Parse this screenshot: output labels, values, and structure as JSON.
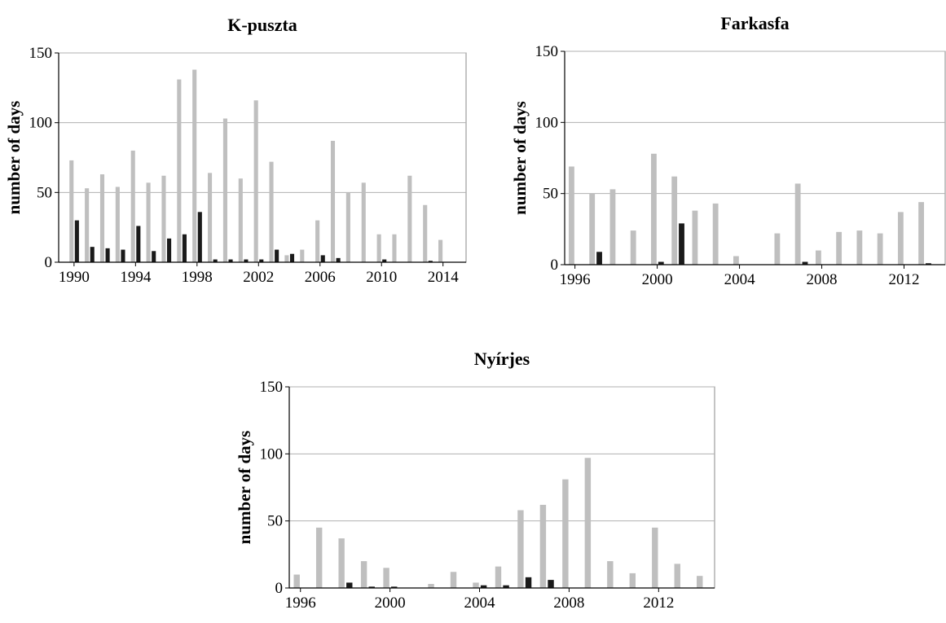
{
  "chart_data": [
    {
      "type": "bar",
      "title": "K-puszta",
      "ylabel": "number of days",
      "x": [
        1990,
        1991,
        1992,
        1993,
        1994,
        1995,
        1996,
        1997,
        1998,
        1999,
        2000,
        2001,
        2002,
        2003,
        2004,
        2005,
        2006,
        2007,
        2008,
        2009,
        2010,
        2011,
        2012,
        2013,
        2014
      ],
      "series": [
        {
          "color": "#bfbfbf",
          "values": [
            73,
            53,
            63,
            54,
            80,
            57,
            62,
            131,
            138,
            64,
            103,
            60,
            116,
            72,
            5,
            9,
            30,
            87,
            50,
            57,
            20,
            20,
            62,
            41,
            16
          ]
        },
        {
          "color": "#1a1a1a",
          "values": [
            30,
            11,
            10,
            9,
            26,
            8,
            17,
            20,
            36,
            2,
            2,
            2,
            2,
            9,
            6,
            0,
            5,
            3,
            0,
            0,
            2,
            0,
            0,
            1,
            0
          ]
        }
      ],
      "xlim": [
        1989,
        2015.5
      ],
      "xticks": [
        1990,
        1994,
        1998,
        2002,
        2006,
        2010,
        2014
      ],
      "ylim": [
        0,
        150
      ],
      "yticks": [
        0,
        50,
        100,
        150
      ],
      "grid": true
    },
    {
      "type": "bar",
      "title": "Farkasfa",
      "ylabel": "number of days",
      "x": [
        1996,
        1997,
        1998,
        1999,
        2000,
        2001,
        2002,
        2003,
        2004,
        2005,
        2006,
        2007,
        2008,
        2009,
        2010,
        2011,
        2012,
        2013
      ],
      "series": [
        {
          "color": "#bfbfbf",
          "values": [
            69,
            50,
            53,
            24,
            78,
            62,
            38,
            43,
            6,
            0,
            22,
            57,
            10,
            23,
            24,
            22,
            37,
            44
          ]
        },
        {
          "color": "#1a1a1a",
          "values": [
            0,
            9,
            0,
            0,
            2,
            29,
            0,
            0,
            0,
            0,
            0,
            2,
            0,
            0,
            0,
            0,
            0,
            1
          ]
        }
      ],
      "xlim": [
        1995.5,
        2014
      ],
      "xticks": [
        1996,
        2000,
        2004,
        2008,
        2012
      ],
      "ylim": [
        0,
        150
      ],
      "yticks": [
        0,
        50,
        100,
        150
      ],
      "grid": true
    },
    {
      "type": "bar",
      "title": "Nyírjes",
      "ylabel": "number of days",
      "x": [
        1996,
        1997,
        1998,
        1999,
        2000,
        2001,
        2002,
        2003,
        2004,
        2005,
        2006,
        2007,
        2008,
        2009,
        2010,
        2011,
        2012,
        2013,
        2014
      ],
      "series": [
        {
          "color": "#bfbfbf",
          "values": [
            10,
            45,
            37,
            20,
            15,
            0,
            3,
            12,
            4,
            16,
            58,
            62,
            81,
            97,
            20,
            11,
            45,
            18,
            9
          ]
        },
        {
          "color": "#1a1a1a",
          "values": [
            0,
            0,
            4,
            1,
            1,
            0,
            0,
            0,
            2,
            2,
            8,
            6,
            0,
            0,
            0,
            0,
            0,
            0,
            0
          ]
        }
      ],
      "xlim": [
        1995.5,
        2014.5
      ],
      "xticks": [
        1996,
        2000,
        2004,
        2008,
        2012
      ],
      "ylim": [
        0,
        150
      ],
      "yticks": [
        0,
        50,
        100,
        150
      ],
      "grid": true
    }
  ]
}
